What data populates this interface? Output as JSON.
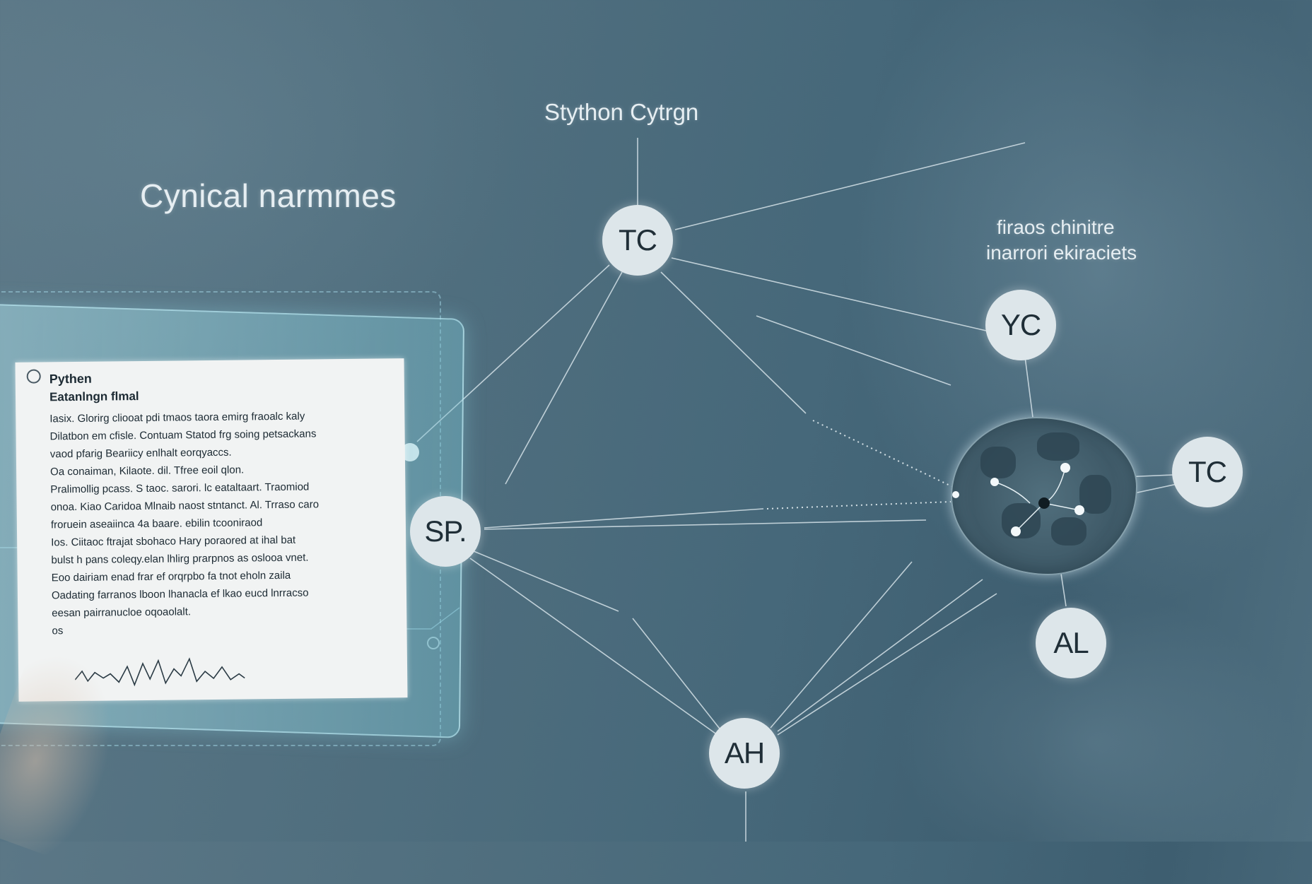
{
  "headings": {
    "left": "Cynical narmmes",
    "top": "Stython Cytrgn",
    "right_line1": "firaos chinitre",
    "right_line2": "inarrori ekiraciets"
  },
  "nodes": {
    "tc_top": "TC",
    "yc": "YC",
    "sp": "SP.",
    "tc_right": "TC",
    "al": "AL",
    "ah": "AH"
  },
  "document": {
    "title": "Pythen",
    "subtitle": "Eatanlngn flmal",
    "lines": [
      "Iasix. Glorirg cliooat pdi tmaos taora emirg fraoalc kaly",
      "Dilatbon em cfisle. Contuam Statod frg soing petsackans",
      "vaod pfarig Beariicy enlhalt eorqyaccs.",
      "Oa conaiman, Kilaote. dil. Tfree eoil qlon.",
      "Pralimollig pcass. S taoc. sarori. lc eataltaart. Traomiod",
      "onoa. Kiao Caridoa Mlnaib naost stntanct. Al. Trraso caro",
      "froruein aseaiinca 4a baare. ebilin tcooniraod",
      "Ios. Ciitaoc ftrajat sbohaco Hary poraored at ihal bat",
      "bulst h pans coleqy.elan lhlirg prarpnos as oslooa vnet.",
      "Eoo dairiam enad frar ef orqrpbo fa tnot eholn zaila",
      "Oadating farranos lboon lhanacla ef lkao eucd lnrracso",
      "eesan pairranucloe oqoaolalt.",
      "os"
    ]
  },
  "colors": {
    "background": "#4f6e7e",
    "node_fill": "#dde6ea",
    "line": "#cfdde4",
    "tablet_glow": "#9fd8e4"
  }
}
